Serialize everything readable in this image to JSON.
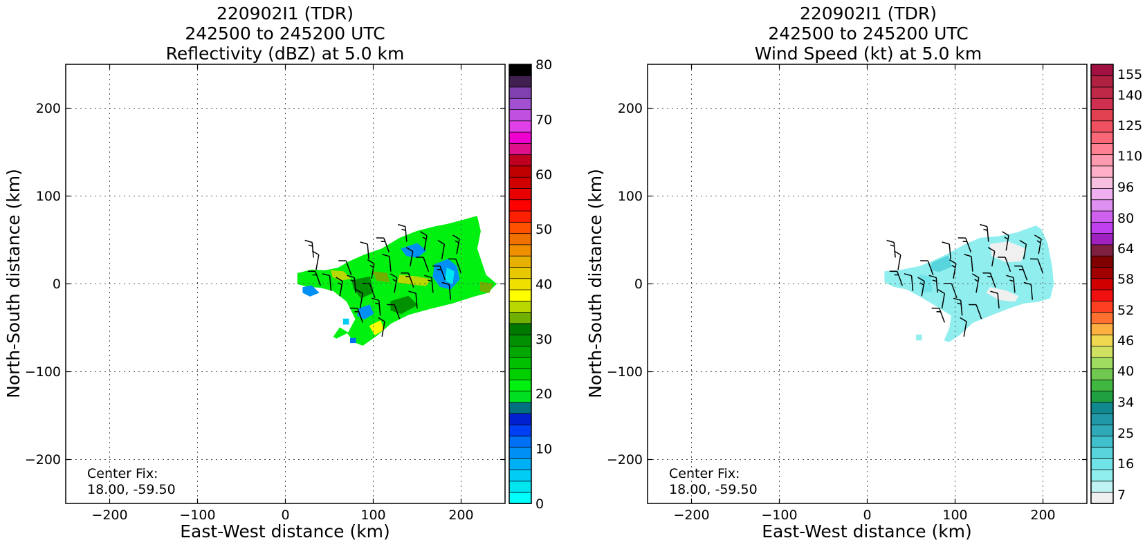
{
  "panels": [
    {
      "title_lines": [
        "220902I1 (TDR)",
        "242500 to 245200 UTC",
        "Reflectivity (dBZ) at 5.0 km"
      ],
      "xlabel": "East-West distance (km)",
      "ylabel": "North-South distance (km)",
      "center_fix_label": "Center Fix:",
      "center_fix_value": "18.00, -59.50",
      "colorbar_ticks": [
        "0",
        "10",
        "20",
        "30",
        "40",
        "50",
        "60",
        "70",
        "80"
      ],
      "colorbar_colors": [
        "#00ffff",
        "#00e6f0",
        "#00ccf5",
        "#00b0f5",
        "#0090f5",
        "#0070f5",
        "#0040f5",
        "#0020d0",
        "#007080",
        "#00e020",
        "#00f010",
        "#00d000",
        "#00c000",
        "#00a800",
        "#009000",
        "#007800",
        "#70b000",
        "#b8d800",
        "#ffff00",
        "#f0e000",
        "#e8c800",
        "#e8b000",
        "#f09000",
        "#f07000",
        "#ff5000",
        "#ff2000",
        "#ff0000",
        "#e80000",
        "#d00000",
        "#c00000",
        "#c00020",
        "#e0108a",
        "#f000d0",
        "#e040e8",
        "#c050e0",
        "#a050d0",
        "#8040b0",
        "#402050",
        "#000000"
      ]
    },
    {
      "title_lines": [
        "220902I1 (TDR)",
        "242500 to 245200 UTC",
        "Wind Speed (kt) at 5.0 km"
      ],
      "xlabel": "East-West distance (km)",
      "ylabel": "North-South distance (km)",
      "center_fix_label": "Center Fix:",
      "center_fix_value": "18.00, -59.50",
      "colorbar_ticks": [
        "7",
        "16",
        "25",
        "34",
        "40",
        "46",
        "52",
        "58",
        "64",
        "80",
        "96",
        "110",
        "125",
        "140",
        "155"
      ],
      "colorbar_colors": [
        "#f0f0f0",
        "#c0f4f4",
        "#90eeee",
        "#70e4e8",
        "#58d4dc",
        "#40c0cc",
        "#30aab8",
        "#2098a8",
        "#108890",
        "#20a040",
        "#40b840",
        "#70c850",
        "#a0dc60",
        "#d0e060",
        "#f0d850",
        "#ffb040",
        "#ff7030",
        "#ff4020",
        "#f01010",
        "#d00000",
        "#a00000",
        "#800000",
        "#802040",
        "#a020c0",
        "#c040f0",
        "#d060f0",
        "#e090f0",
        "#f0b0f0",
        "#f8c0e0",
        "#ffb0c8",
        "#ff9ab0",
        "#ff8090",
        "#f86878",
        "#f05060",
        "#e04050",
        "#d03050",
        "#c02848",
        "#b02040",
        "#a01040"
      ]
    }
  ],
  "tick_labels": {
    "x": [
      "−200",
      "−100",
      "0",
      "100",
      "200"
    ],
    "y": [
      "200",
      "100",
      "0",
      "−100",
      "−200"
    ]
  },
  "chart_data": [
    {
      "type": "heatmap",
      "field": "Reflectivity (dBZ)",
      "xlim": [
        -250,
        250
      ],
      "ylim": [
        -250,
        250
      ],
      "grid": true,
      "x_ticks": [
        -200,
        -100,
        0,
        100,
        200
      ],
      "y_ticks": [
        -200,
        -100,
        0,
        100,
        200
      ],
      "colorbar_range": [
        0,
        80
      ],
      "echo_region_km": {
        "x": [
          12,
          240
        ],
        "y": [
          -70,
          78
        ]
      },
      "regions": [
        {
          "name": "main-echo",
          "dbz": 22,
          "polygon": [
            [
              14,
              12
            ],
            [
              30,
              16
            ],
            [
              45,
              15
            ],
            [
              60,
              18
            ],
            [
              72,
              25
            ],
            [
              90,
              33
            ],
            [
              110,
              40
            ],
            [
              130,
              52
            ],
            [
              150,
              60
            ],
            [
              170,
              65
            ],
            [
              185,
              68
            ],
            [
              200,
              72
            ],
            [
              218,
              77
            ],
            [
              222,
              60
            ],
            [
              218,
              40
            ],
            [
              228,
              10
            ],
            [
              240,
              0
            ],
            [
              230,
              -10
            ],
            [
              215,
              -14
            ],
            [
              190,
              -22
            ],
            [
              165,
              -28
            ],
            [
              140,
              -35
            ],
            [
              120,
              -45
            ],
            [
              105,
              -58
            ],
            [
              88,
              -70
            ],
            [
              78,
              -66
            ],
            [
              70,
              -55
            ],
            [
              62,
              -50
            ],
            [
              55,
              -60
            ],
            [
              58,
              -62
            ],
            [
              72,
              -55
            ],
            [
              80,
              -40
            ],
            [
              70,
              -20
            ],
            [
              55,
              -8
            ],
            [
              40,
              -4
            ],
            [
              25,
              -3
            ],
            [
              14,
              0
            ]
          ]
        },
        {
          "name": "weak-blue-1",
          "dbz": 10,
          "polygon": [
            [
              170,
              22
            ],
            [
              185,
              28
            ],
            [
              195,
              20
            ],
            [
              198,
              5
            ],
            [
              188,
              -6
            ],
            [
              176,
              -3
            ],
            [
              168,
              8
            ]
          ]
        },
        {
          "name": "weak-blue-2",
          "dbz": 10,
          "polygon": [
            [
              132,
              40
            ],
            [
              150,
              46
            ],
            [
              160,
              38
            ],
            [
              150,
              30
            ],
            [
              138,
              32
            ]
          ]
        },
        {
          "name": "weak-blue-3",
          "dbz": 10,
          "polygon": [
            [
              20,
              -4
            ],
            [
              30,
              -2
            ],
            [
              38,
              -10
            ],
            [
              28,
              -14
            ],
            [
              20,
              -10
            ]
          ]
        },
        {
          "name": "weak-blue-4",
          "dbz": 10,
          "polygon": [
            [
              84,
              -28
            ],
            [
              96,
              -24
            ],
            [
              100,
              -34
            ],
            [
              90,
              -40
            ],
            [
              82,
              -36
            ]
          ]
        },
        {
          "name": "blank-center",
          "dbz": 3,
          "polygon": [
            [
              184,
              18
            ],
            [
              192,
              14
            ],
            [
              190,
              0
            ],
            [
              182,
              4
            ]
          ]
        },
        {
          "name": "yellow-band-1",
          "dbz": 36,
          "polygon": [
            [
              52,
              15
            ],
            [
              66,
              14
            ],
            [
              74,
              6
            ],
            [
              62,
              4
            ],
            [
              54,
              8
            ]
          ]
        },
        {
          "name": "yellow-band-2",
          "dbz": 36,
          "polygon": [
            [
              130,
              10
            ],
            [
              150,
              8
            ],
            [
              165,
              5
            ],
            [
              160,
              -2
            ],
            [
              140,
              0
            ],
            [
              128,
              2
            ]
          ]
        },
        {
          "name": "yellow-band-3",
          "dbz": 38,
          "polygon": [
            [
              96,
              -48
            ],
            [
              108,
              -42
            ],
            [
              112,
              -52
            ],
            [
              102,
              -58
            ]
          ]
        },
        {
          "name": "yellow-band-4",
          "dbz": 34,
          "polygon": [
            [
              222,
              2
            ],
            [
              236,
              0
            ],
            [
              232,
              -10
            ],
            [
              222,
              -8
            ]
          ]
        },
        {
          "name": "yellow-band-5",
          "dbz": 34,
          "polygon": [
            [
              100,
              14
            ],
            [
              116,
              12
            ],
            [
              118,
              2
            ],
            [
              104,
              4
            ]
          ]
        },
        {
          "name": "dark-green-1",
          "dbz": 30,
          "polygon": [
            [
              76,
              4
            ],
            [
              96,
              8
            ],
            [
              100,
              -10
            ],
            [
              86,
              -16
            ],
            [
              78,
              -6
            ]
          ]
        },
        {
          "name": "dark-green-2",
          "dbz": 30,
          "polygon": [
            [
              120,
              -20
            ],
            [
              140,
              -14
            ],
            [
              150,
              -24
            ],
            [
              132,
              -34
            ],
            [
              120,
              -30
            ]
          ]
        },
        {
          "name": "outlier-1",
          "dbz": 5,
          "polygon": [
            [
              66,
              -40
            ],
            [
              72,
              -40
            ],
            [
              72,
              -46
            ],
            [
              66,
              -46
            ]
          ]
        },
        {
          "name": "outlier-2",
          "dbz": 12,
          "polygon": [
            [
              74,
              -62
            ],
            [
              80,
              -62
            ],
            [
              80,
              -67
            ],
            [
              74,
              -67
            ]
          ]
        }
      ]
    },
    {
      "type": "heatmap",
      "field": "Wind Speed (kt)",
      "xlim": [
        -250,
        250
      ],
      "ylim": [
        -250,
        250
      ],
      "grid": true,
      "x_ticks": [
        -200,
        -100,
        0,
        100,
        200
      ],
      "y_ticks": [
        -200,
        -100,
        0,
        100,
        200
      ],
      "colorbar_range": [
        7,
        160
      ],
      "echo_region_km": {
        "x": [
          20,
          210
        ],
        "y": [
          -68,
          70
        ]
      },
      "regions": [
        {
          "name": "main-wind",
          "kt": 16,
          "polygon": [
            [
              20,
              14
            ],
            [
              40,
              16
            ],
            [
              60,
              20
            ],
            [
              75,
              26
            ],
            [
              92,
              34
            ],
            [
              110,
              44
            ],
            [
              128,
              52
            ],
            [
              150,
              54
            ],
            [
              170,
              58
            ],
            [
              192,
              66
            ],
            [
              198,
              62
            ],
            [
              205,
              46
            ],
            [
              210,
              20
            ],
            [
              212,
              0
            ],
            [
              208,
              -16
            ],
            [
              195,
              -20
            ],
            [
              178,
              -22
            ],
            [
              160,
              -28
            ],
            [
              140,
              -36
            ],
            [
              120,
              -44
            ],
            [
              105,
              -58
            ],
            [
              93,
              -66
            ],
            [
              88,
              -64
            ],
            [
              94,
              -50
            ],
            [
              96,
              -36
            ],
            [
              80,
              -26
            ],
            [
              60,
              -14
            ],
            [
              45,
              -6
            ],
            [
              30,
              -3
            ],
            [
              20,
              2
            ]
          ]
        },
        {
          "name": "light-wind-1",
          "kt": 9,
          "polygon": [
            [
              140,
              45
            ],
            [
              160,
              48
            ],
            [
              180,
              40
            ],
            [
              175,
              26
            ],
            [
              158,
              25
            ],
            [
              142,
              32
            ]
          ]
        },
        {
          "name": "light-wind-2",
          "kt": 9,
          "polygon": [
            [
              140,
              -4
            ],
            [
              158,
              -8
            ],
            [
              172,
              -14
            ],
            [
              168,
              -20
            ],
            [
              150,
              -18
            ],
            [
              136,
              -10
            ]
          ]
        },
        {
          "name": "dark-teal-1",
          "kt": 24,
          "polygon": [
            [
              74,
              24
            ],
            [
              92,
              32
            ],
            [
              96,
              20
            ],
            [
              82,
              14
            ],
            [
              72,
              16
            ]
          ]
        },
        {
          "name": "dark-teal-2",
          "kt": 22,
          "polygon": [
            [
              60,
              10
            ],
            [
              72,
              8
            ],
            [
              74,
              -8
            ],
            [
              62,
              -10
            ]
          ]
        },
        {
          "name": "outlier",
          "kt": 18,
          "polygon": [
            [
              56,
              -58
            ],
            [
              62,
              -58
            ],
            [
              62,
              -64
            ],
            [
              56,
              -64
            ]
          ]
        }
      ]
    }
  ],
  "wind_barbs": [
    {
      "x": 32,
      "y": 30
    },
    {
      "x": 35,
      "y": 16
    },
    {
      "x": 40,
      "y": -2
    },
    {
      "x": 52,
      "y": -8
    },
    {
      "x": 62,
      "y": -14
    },
    {
      "x": 75,
      "y": 10
    },
    {
      "x": 80,
      "y": -10
    },
    {
      "x": 85,
      "y": -28
    },
    {
      "x": 88,
      "y": -44
    },
    {
      "x": 95,
      "y": 28
    },
    {
      "x": 98,
      "y": 6
    },
    {
      "x": 102,
      "y": -16
    },
    {
      "x": 108,
      "y": -36
    },
    {
      "x": 110,
      "y": -60
    },
    {
      "x": 118,
      "y": 36
    },
    {
      "x": 120,
      "y": 14
    },
    {
      "x": 124,
      "y": -10
    },
    {
      "x": 130,
      "y": -40
    },
    {
      "x": 138,
      "y": 48
    },
    {
      "x": 142,
      "y": 20
    },
    {
      "x": 146,
      "y": -4
    },
    {
      "x": 150,
      "y": -28
    },
    {
      "x": 158,
      "y": 38
    },
    {
      "x": 163,
      "y": 14
    },
    {
      "x": 168,
      "y": -10
    },
    {
      "x": 178,
      "y": 28
    },
    {
      "x": 182,
      "y": 4
    },
    {
      "x": 188,
      "y": -18
    },
    {
      "x": 195,
      "y": 34
    },
    {
      "x": 200,
      "y": 12
    }
  ]
}
